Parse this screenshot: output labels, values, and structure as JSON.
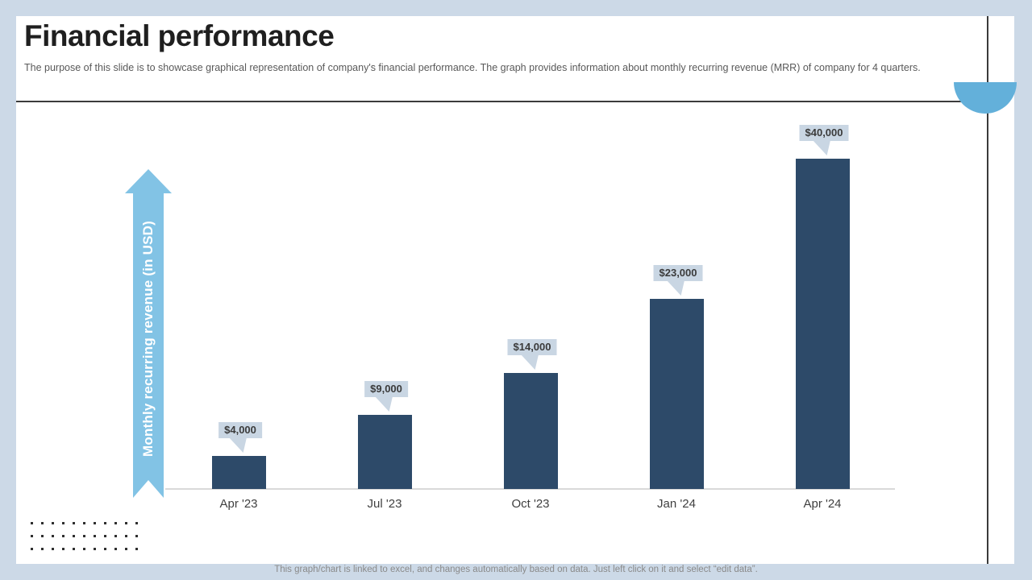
{
  "slide": {
    "title": "Financial performance",
    "subtitle": "The purpose of this slide is to showcase graphical representation of company's financial performance. The graph provides information about monthly recurring revenue (MRR) of company for 4 quarters.",
    "footer_note": "This graph/chart is linked to excel, and changes automatically based on data. Just left click on it and select “edit data”."
  },
  "chart_data": {
    "type": "bar",
    "title": "",
    "categories": [
      "Apr '23",
      "Jul '23",
      "Oct '23",
      "Jan '24",
      "Apr '24"
    ],
    "values": [
      4000,
      9000,
      14000,
      23000,
      40000
    ],
    "data_labels": [
      "$4,000",
      "$9,000",
      "$14,000",
      "$23,000",
      "$40,000"
    ],
    "xlabel": "",
    "ylabel": "Monthly recurring revenue (in USD)",
    "ylim": [
      0,
      41000
    ],
    "grid": false,
    "legend": false,
    "colors": {
      "bar": "#2d4a69",
      "data_label_bg": "#c9d6e3",
      "data_label_text": "#3b3b3b",
      "axis_arrow": "#82c3e5",
      "axis_line": "#d9d9d9"
    }
  },
  "decor": {
    "background": "#ccd9e7",
    "semicircle": "#63b0da",
    "line_color": "#3b3b3b"
  }
}
